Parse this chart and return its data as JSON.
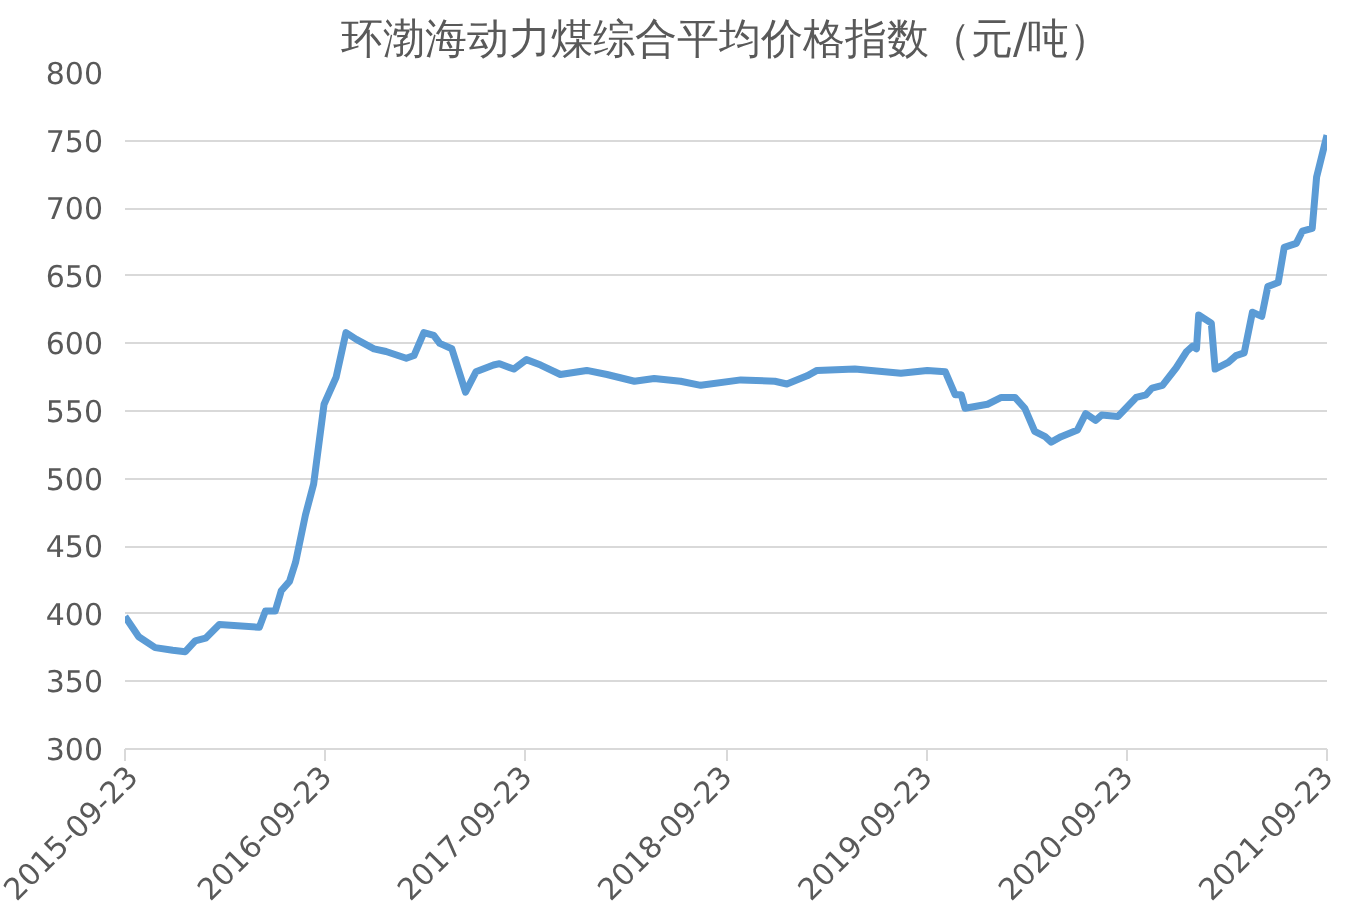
{
  "chart_data": {
    "type": "line",
    "title": "环渤海动力煤综合平均价格指数（元/吨）",
    "x": [
      "2015-09-23",
      "2015-10-18",
      "2015-11-17",
      "2015-12-19",
      "2016-01-11",
      "2016-01-29",
      "2016-02-17",
      "2016-03-13",
      "2016-05-25",
      "2016-06-05",
      "2016-06-23",
      "2016-07-04",
      "2016-07-19",
      "2016-07-30",
      "2016-08-17",
      "2016-09-01",
      "2016-09-20",
      "2016-10-12",
      "2016-10-30",
      "2016-11-18",
      "2016-12-20",
      "2017-01-11",
      "2017-02-17",
      "2017-03-03",
      "2017-03-21",
      "2017-04-08",
      "2017-04-19",
      "2017-05-11",
      "2017-06-05",
      "2017-06-24",
      "2017-07-26",
      "2017-08-06",
      "2017-09-01",
      "2017-09-24",
      "2017-10-20",
      "2017-11-25",
      "2018-01-12",
      "2018-02-18",
      "2018-04-09",
      "2018-05-15",
      "2018-07-02",
      "2018-08-08",
      "2018-10-20",
      "2018-12-21",
      "2019-01-12",
      "2019-02-18",
      "2019-03-08",
      "2019-05-16",
      "2019-08-08",
      "2019-09-25",
      "2019-10-28",
      "2019-11-15",
      "2019-11-26",
      "2019-12-03",
      "2020-01-13",
      "2020-02-07",
      "2020-03-03",
      "2020-03-21",
      "2020-04-08",
      "2020-04-27",
      "2020-05-08",
      "2020-05-26",
      "2020-06-25",
      "2020-07-10",
      "2020-07-28",
      "2020-08-08",
      "2020-09-07",
      "2020-10-10",
      "2020-10-28",
      "2020-11-08",
      "2020-11-27",
      "2020-12-22",
      "2021-01-10",
      "2021-01-21",
      "2021-01-28",
      "2021-02-01",
      "2021-02-24",
      "2021-03-03",
      "2021-03-27",
      "2021-04-10",
      "2021-04-25",
      "2021-05-10",
      "2021-05-27",
      "2021-06-07",
      "2021-06-26",
      "2021-07-07",
      "2021-07-29",
      "2021-08-09",
      "2021-08-27",
      "2021-09-04",
      "2021-09-23"
    ],
    "series": [
      {
        "color": "#5b9bd5",
        "values": [
          398,
          383,
          375,
          373,
          372,
          380,
          382,
          392,
          390,
          402,
          402,
          417,
          424,
          438,
          473,
          496,
          555,
          575,
          608,
          603,
          596,
          594,
          589,
          591,
          608,
          606,
          600,
          596,
          564,
          579,
          584,
          585,
          581,
          588,
          584,
          577,
          580,
          577,
          572,
          574,
          572,
          569,
          573,
          572,
          570,
          576,
          580,
          581,
          578,
          580,
          579,
          562,
          562,
          552,
          555,
          560,
          560,
          552,
          535,
          531,
          527,
          531,
          536,
          548,
          543,
          547,
          546,
          560,
          562,
          567,
          569,
          582,
          594,
          598,
          596,
          621,
          615,
          581,
          586,
          591,
          593,
          623,
          620,
          642,
          645,
          671,
          674,
          683,
          685,
          723,
          754
        ]
      }
    ],
    "xlim": [
      "2015-09-23",
      "2021-09-23"
    ],
    "xticks": [
      "2015-09-23",
      "2016-09-23",
      "2017-09-23",
      "2018-09-23",
      "2019-09-23",
      "2020-09-23",
      "2021-09-23"
    ],
    "ylim": [
      300,
      800
    ],
    "yticks": [
      300,
      350,
      400,
      450,
      500,
      550,
      600,
      650,
      700,
      750,
      800
    ],
    "grid": "y",
    "marker": "none",
    "line_style": "solid"
  }
}
